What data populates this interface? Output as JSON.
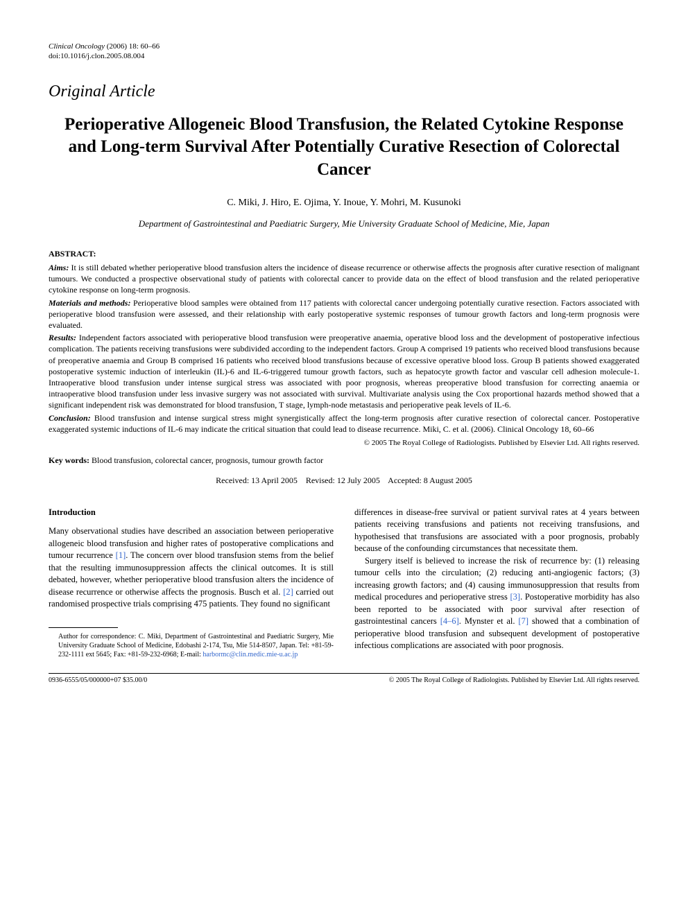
{
  "journal": {
    "name": "Clinical Oncology",
    "year": "(2006)",
    "volume": "18:",
    "pages": "60–66",
    "doi": "doi:10.1016/j.clon.2005.08.004"
  },
  "article_type": "Original Article",
  "title": "Perioperative Allogeneic Blood Transfusion, the Related Cytokine Response and Long-term Survival After Potentially Curative Resection of Colorectal Cancer",
  "authors": "C. Miki, J. Hiro, E. Ojima, Y. Inoue, Y. Mohri, M. Kusunoki",
  "affiliation": "Department of Gastrointestinal and Paediatric Surgery, Mie University Graduate School of Medicine, Mie, Japan",
  "abstract": {
    "label": "ABSTRACT:",
    "aims": {
      "heading": "Aims:",
      "text": "It is still debated whether perioperative blood transfusion alters the incidence of disease recurrence or otherwise affects the prognosis after curative resection of malignant tumours. We conducted a prospective observational study of patients with colorectal cancer to provide data on the effect of blood transfusion and the related perioperative cytokine response on long-term prognosis."
    },
    "methods": {
      "heading": "Materials and methods:",
      "text": "Perioperative blood samples were obtained from 117 patients with colorectal cancer undergoing potentially curative resection. Factors associated with perioperative blood transfusion were assessed, and their relationship with early postoperative systemic responses of tumour growth factors and long-term prognosis were evaluated."
    },
    "results": {
      "heading": "Results:",
      "text": "Independent factors associated with perioperative blood transfusion were preoperative anaemia, operative blood loss and the development of postoperative infectious complication. The patients receiving transfusions were subdivided according to the independent factors. Group A comprised 19 patients who received blood transfusions because of preoperative anaemia and Group B comprised 16 patients who received blood transfusions because of excessive operative blood loss. Group B patients showed exaggerated postoperative systemic induction of interleukin (IL)-6 and IL-6-triggered tumour growth factors, such as hepatocyte growth factor and vascular cell adhesion molecule-1. Intraoperative blood transfusion under intense surgical stress was associated with poor prognosis, whereas preoperative blood transfusion for correcting anaemia or intraoperative blood transfusion under less invasive surgery was not associated with survival. Multivariate analysis using the Cox proportional hazards method showed that a significant independent risk was demonstrated for blood transfusion, T stage, lymph-node metastasis and perioperative peak levels of IL-6."
    },
    "conclusion": {
      "heading": "Conclusion:",
      "text": "Blood transfusion and intense surgical stress might synergistically affect the long-term prognosis after curative resection of colorectal cancer. Postoperative exaggerated systemic inductions of IL-6 may indicate the critical situation that could lead to disease recurrence. Miki, C. et al. (2006). Clinical Oncology 18, 60–66"
    }
  },
  "copyright": "© 2005 The Royal College of Radiologists. Published by Elsevier Ltd. All rights reserved.",
  "keywords": {
    "label": "Key words:",
    "text": "Blood transfusion, colorectal cancer, prognosis, tumour growth factor"
  },
  "dates": {
    "received": "Received: 13 April 2005",
    "revised": "Revised: 12 July 2005",
    "accepted": "Accepted: 8 August 2005"
  },
  "introduction": {
    "heading": "Introduction",
    "para1_pre": "Many observational studies have described an association between perioperative allogeneic blood transfusion and higher rates of postoperative complications and tumour recurrence ",
    "ref1": "[1]",
    "para1_mid": ". The concern over blood transfusion stems from the belief that the resulting immunosuppression affects the clinical outcomes. It is still debated, however, whether perioperative blood transfusion alters the incidence of disease recurrence or otherwise affects the prognosis. Busch et al. ",
    "ref2": "[2]",
    "para1_post": " carried out randomised prospective trials comprising 475 patients. They found no significant",
    "para2": "differences in disease-free survival or patient survival rates at 4 years between patients receiving transfusions and patients not receiving transfusions, and hypothesised that transfusions are associated with a poor prognosis, probably because of the confounding circumstances that necessitate them.",
    "para3_pre": "Surgery itself is believed to increase the risk of recurrence by: (1) releasing tumour cells into the circulation; (2) reducing anti-angiogenic factors; (3) increasing growth factors; and (4) causing immunosuppression that results from medical procedures and perioperative stress ",
    "ref3": "[3]",
    "para3_mid": ". Postoperative morbidity has also been reported to be associated with poor survival after resection of gastrointestinal cancers ",
    "ref46": "[4–6]",
    "para3_mid2": ". Mynster et al. ",
    "ref7": "[7]",
    "para3_post": " showed that a combination of perioperative blood transfusion and subsequent development of postoperative infectious complications are associated with poor prognosis."
  },
  "correspondence": {
    "label": "Author for correspondence:",
    "text": "C. Miki, Department of Gastrointestinal and Paediatric Surgery, Mie University Graduate School of Medicine, Edobashi 2-174, Tsu, Mie 514-8507, Japan. Tel: +81-59-232-1111 ext 5645; Fax: +81-59-232-6968; E-mail: ",
    "email": "harbormc@clin.medic.mie-u.ac.jp"
  },
  "footer": {
    "left": "0936-6555/05/000000+07 $35.00/0",
    "right": "© 2005 The Royal College of Radiologists. Published by Elsevier Ltd. All rights reserved."
  }
}
